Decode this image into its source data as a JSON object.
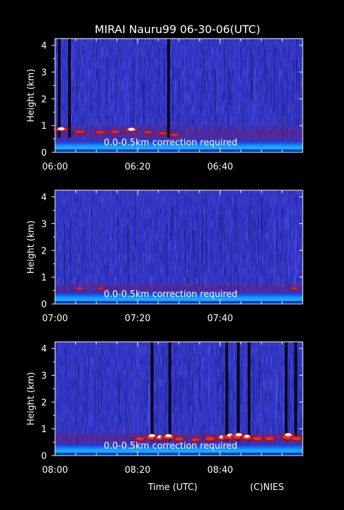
{
  "title": "MIRAI Nauru99 06-30-06(UTC)",
  "footer": {
    "xlabel": "Time (UTC)",
    "credit": "(C)NIES"
  },
  "colors": {
    "background": "#000000",
    "field_base": "#2222bb",
    "noise_light": "#4b5cff",
    "noise_dark": "#0b1060",
    "low_echo": "#a01020",
    "strong_echo": "#ff3010",
    "saturated": "#ffffff",
    "near_surface": "#00aaff",
    "annotation": "#ffffff"
  },
  "chart_data": [
    {
      "type": "heatmap",
      "title": "MIRAI Nauru99 06-30-06(UTC)",
      "ylabel": "Height (km)",
      "xlabel": "",
      "ylim": [
        0,
        4.25
      ],
      "yticks": [
        0,
        1,
        2,
        3,
        4
      ],
      "xlim_minutes": [
        360,
        420
      ],
      "xticks": [
        {
          "minute": 360,
          "label": "06:00"
        },
        {
          "minute": 380,
          "label": "06:20"
        },
        {
          "minute": 400,
          "label": "06:40"
        }
      ],
      "annotation": "0.0-0.5km correction required",
      "cloud_base_km": [
        0.75,
        0.9
      ],
      "cloud_events": [
        {
          "t": 361.5,
          "base_km": 0.8,
          "top_km": 0.92,
          "strength": 1.0
        },
        {
          "t": 366.0,
          "base_km": 0.72,
          "top_km": 0.82,
          "strength": 0.7
        },
        {
          "t": 371.0,
          "base_km": 0.7,
          "top_km": 0.8,
          "strength": 0.6
        },
        {
          "t": 374.5,
          "base_km": 0.72,
          "top_km": 0.82,
          "strength": 0.6
        },
        {
          "t": 378.5,
          "base_km": 0.78,
          "top_km": 0.9,
          "strength": 1.0
        },
        {
          "t": 382.5,
          "base_km": 0.7,
          "top_km": 0.8,
          "strength": 0.5
        },
        {
          "t": 386.0,
          "base_km": 0.66,
          "top_km": 0.76,
          "strength": 0.5
        },
        {
          "t": 389.0,
          "base_km": 0.6,
          "top_km": 0.7,
          "strength": 0.5
        }
      ],
      "signal_gaps_minutes": [
        361.0,
        363.5,
        387.5
      ]
    },
    {
      "type": "heatmap",
      "ylabel": "Height (km)",
      "xlabel": "",
      "ylim": [
        0,
        4.25
      ],
      "yticks": [
        0,
        1,
        2,
        3,
        4
      ],
      "xlim_minutes": [
        420,
        480
      ],
      "xticks": [
        {
          "minute": 420,
          "label": "07:00"
        },
        {
          "minute": 440,
          "label": "07:20"
        },
        {
          "minute": 460,
          "label": "07:40"
        }
      ],
      "annotation": "0.0-0.5km correction required",
      "cloud_base_km": [
        0.55,
        0.65
      ],
      "cloud_events": [
        {
          "t": 426.0,
          "base_km": 0.55,
          "top_km": 0.62,
          "strength": 0.35
        },
        {
          "t": 431.0,
          "base_km": 0.55,
          "top_km": 0.62,
          "strength": 0.3
        },
        {
          "t": 478.0,
          "base_km": 0.55,
          "top_km": 0.62,
          "strength": 0.3
        }
      ],
      "signal_gaps_minutes": []
    },
    {
      "type": "heatmap",
      "ylabel": "Height (km)",
      "xlabel": "Time (UTC)",
      "ylim": [
        0,
        4.25
      ],
      "yticks": [
        0,
        1,
        2,
        3,
        4
      ],
      "xlim_minutes": [
        480,
        540
      ],
      "xticks": [
        {
          "minute": 480,
          "label": "08:00"
        },
        {
          "minute": 500,
          "label": "08:20"
        },
        {
          "minute": 520,
          "label": "08:40"
        }
      ],
      "annotation": "0.0-0.5km correction required",
      "cloud_base_km": [
        0.5,
        0.75
      ],
      "cloud_events": [
        {
          "t": 500.5,
          "base_km": 0.55,
          "top_km": 0.7,
          "strength": 0.6
        },
        {
          "t": 503.5,
          "base_km": 0.58,
          "top_km": 0.78,
          "strength": 1.0
        },
        {
          "t": 505.5,
          "base_km": 0.58,
          "top_km": 0.74,
          "strength": 0.8
        },
        {
          "t": 507.5,
          "base_km": 0.6,
          "top_km": 0.78,
          "strength": 1.0
        },
        {
          "t": 510.0,
          "base_km": 0.55,
          "top_km": 0.7,
          "strength": 0.6
        },
        {
          "t": 514.0,
          "base_km": 0.52,
          "top_km": 0.66,
          "strength": 0.5
        },
        {
          "t": 517.5,
          "base_km": 0.55,
          "top_km": 0.72,
          "strength": 0.7
        },
        {
          "t": 520.5,
          "base_km": 0.58,
          "top_km": 0.74,
          "strength": 0.8
        },
        {
          "t": 522.5,
          "base_km": 0.6,
          "top_km": 0.8,
          "strength": 1.0
        },
        {
          "t": 524.5,
          "base_km": 0.6,
          "top_km": 0.82,
          "strength": 1.0
        },
        {
          "t": 526.5,
          "base_km": 0.58,
          "top_km": 0.76,
          "strength": 0.8
        },
        {
          "t": 529.0,
          "base_km": 0.55,
          "top_km": 0.72,
          "strength": 0.7
        },
        {
          "t": 532.0,
          "base_km": 0.55,
          "top_km": 0.72,
          "strength": 0.7
        },
        {
          "t": 536.5,
          "base_km": 0.58,
          "top_km": 0.82,
          "strength": 1.0
        },
        {
          "t": 538.5,
          "base_km": 0.55,
          "top_km": 0.72,
          "strength": 0.7
        }
      ],
      "signal_gaps_minutes": [
        503.5,
        507.8,
        521.6,
        524.4,
        527.0,
        536.0,
        538.3
      ]
    }
  ]
}
